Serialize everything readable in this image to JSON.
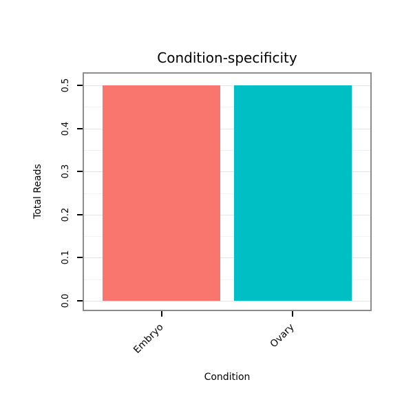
{
  "chart_data": {
    "type": "bar",
    "title": "Condition-specificity",
    "xlabel": "Condition",
    "ylabel": "Total Reads",
    "categories": [
      "Embryo",
      "Ovary"
    ],
    "values": [
      0.5,
      0.5
    ],
    "colors": [
      "#F8766D",
      "#00BFC4"
    ],
    "yticks": [
      0.0,
      0.1,
      0.2,
      0.3,
      0.4,
      0.5
    ],
    "ytick_labels": [
      "0.0",
      "0.1",
      "0.2",
      "0.3",
      "0.4",
      "0.5"
    ],
    "ylim": [
      0,
      0.5
    ],
    "grid": true,
    "legend": false
  }
}
